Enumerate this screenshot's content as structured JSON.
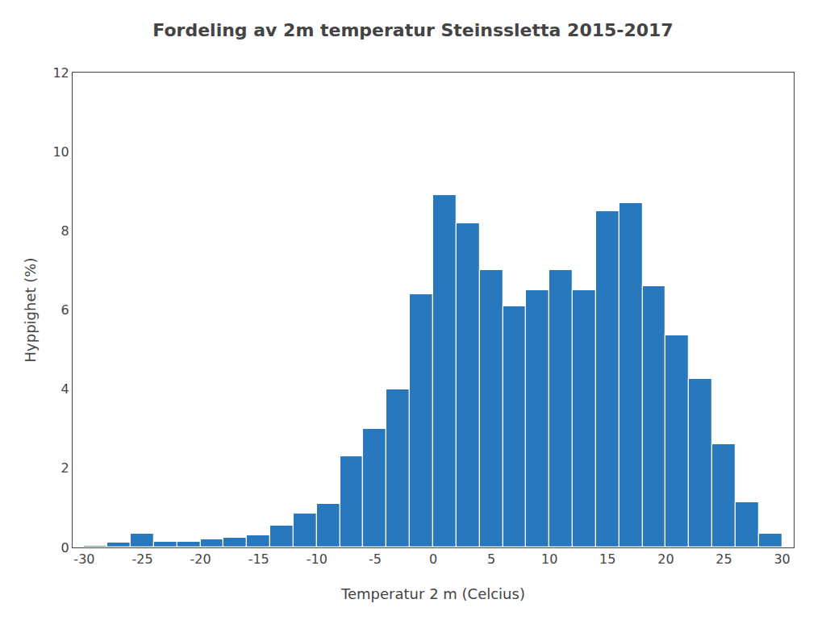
{
  "chart_data": {
    "type": "bar",
    "title": "Fordeling av 2m temperatur Steinssletta 2015-2017",
    "xlabel": "Temperatur 2 m (Celcius)",
    "ylabel": "Hyppighet (%)",
    "x": [
      -29,
      -27,
      -25,
      -23,
      -21,
      -19,
      -17,
      -15,
      -13,
      -11,
      -9,
      -7,
      -5,
      -3,
      -1,
      1,
      3,
      5,
      7,
      9,
      11,
      13,
      15,
      17,
      19,
      21,
      23,
      25,
      27,
      29
    ],
    "values": [
      0.05,
      0.12,
      0.35,
      0.15,
      0.15,
      0.2,
      0.25,
      0.3,
      0.55,
      0.85,
      1.1,
      2.3,
      3.0,
      4.0,
      6.4,
      8.9,
      8.2,
      7.0,
      6.1,
      6.5,
      7.0,
      6.5,
      8.5,
      8.7,
      6.6,
      5.35,
      4.25,
      2.6,
      1.15,
      0.35
    ],
    "color": "#2878be",
    "xlim": [
      -31,
      31
    ],
    "ylim": [
      0,
      12
    ],
    "xticks": [
      -30,
      -25,
      -20,
      -15,
      -10,
      -5,
      0,
      5,
      10,
      15,
      20,
      25,
      30
    ],
    "yticks": [
      0,
      2,
      4,
      6,
      8,
      10,
      12
    ],
    "grid": false
  }
}
